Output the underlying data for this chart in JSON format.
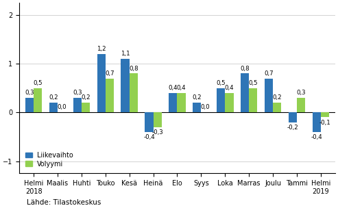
{
  "categories": [
    "Helmi\n2018",
    "Maalis",
    "Huhti",
    "Touko",
    "Kesä",
    "Heinä",
    "Elo",
    "Syys",
    "Loka",
    "Marras",
    "Joulu",
    "Tammi",
    "Helmi\n2019"
  ],
  "liikevaihto": [
    0.3,
    0.2,
    0.3,
    1.2,
    1.1,
    -0.4,
    0.4,
    0.2,
    0.5,
    0.8,
    0.7,
    -0.2,
    -0.4
  ],
  "volyymi": [
    0.5,
    0.0,
    0.2,
    0.7,
    0.8,
    -0.3,
    0.4,
    0.0,
    0.4,
    0.5,
    0.2,
    0.3,
    -0.1
  ],
  "color_liikevaihto": "#2E75B6",
  "color_volyymi": "#92D050",
  "ylim": [
    -1.25,
    2.25
  ],
  "yticks": [
    -1,
    0,
    1,
    2
  ],
  "bar_width": 0.35,
  "legend_labels": [
    "Liikevaihto",
    "Volyymi"
  ],
  "footer": "Lähde: Tilastokeskus",
  "label_fontsize": 6.2,
  "tick_fontsize": 7.0
}
